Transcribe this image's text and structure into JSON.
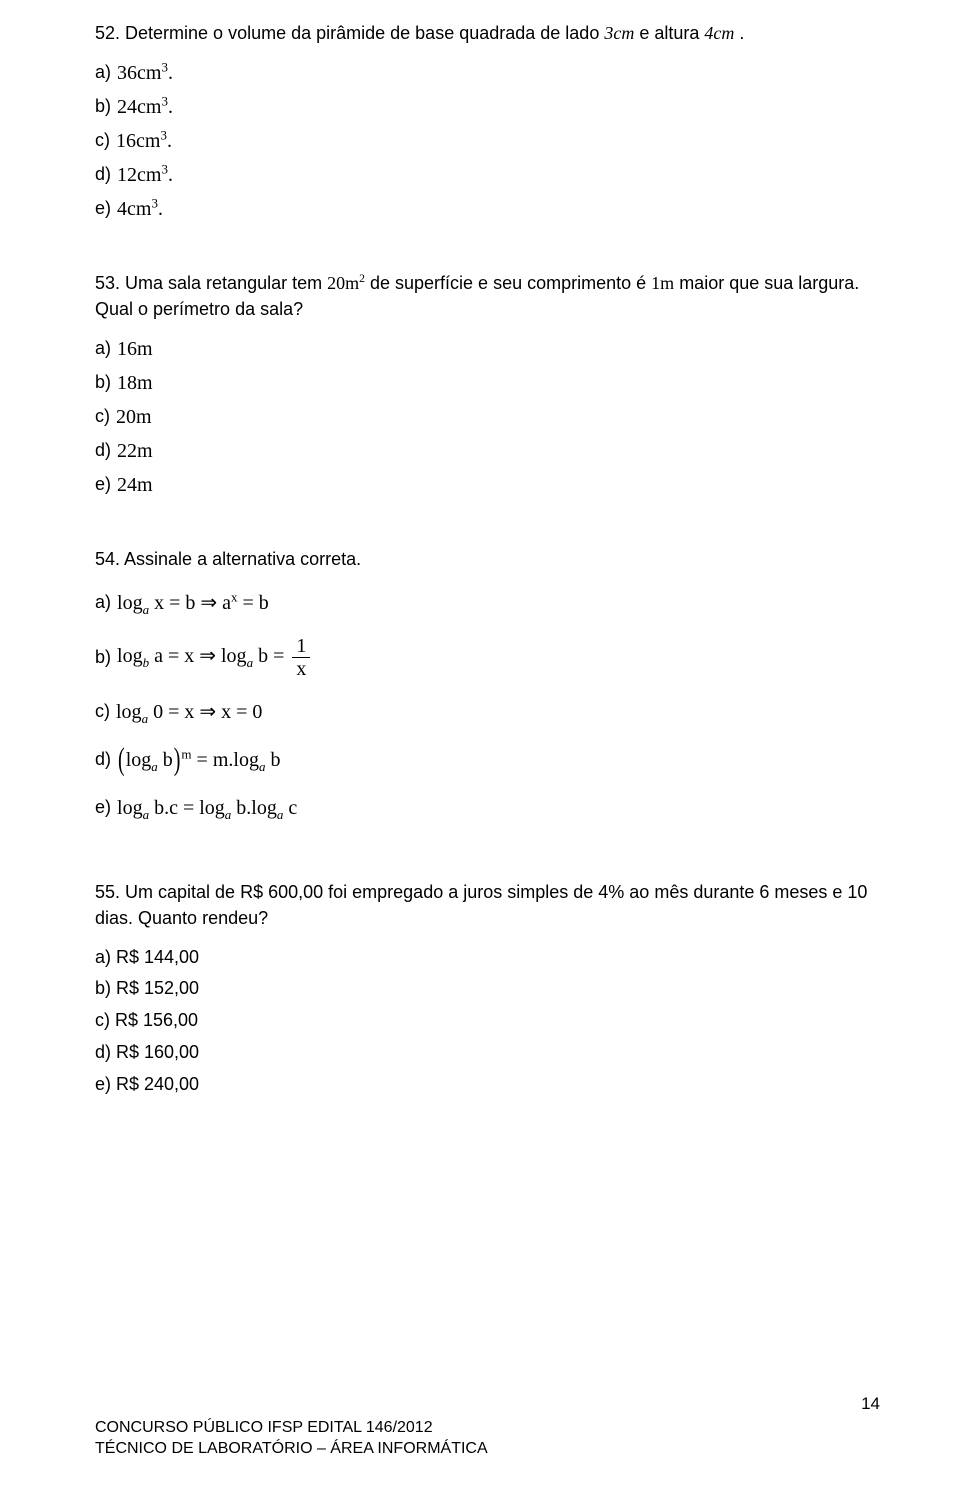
{
  "q52": {
    "stem_prefix": "52. Determine o volume da pirâmide de base quadrada de lado ",
    "side": "3cm",
    "stem_mid": " e altura ",
    "height": "4cm",
    "stem_suffix": ".",
    "options": {
      "a": "36cm",
      "b": "24cm",
      "c": "16cm",
      "d": "12cm",
      "e": "4cm"
    },
    "exp": "3"
  },
  "q53": {
    "stem_a": "53. Uma sala retangular tem ",
    "area": "20m",
    "area_exp": "2",
    "stem_b": " de superfície e seu comprimento é ",
    "diff": "1m",
    "stem_c": " maior que sua largura. Qual o perímetro da sala?",
    "options": {
      "a": "16m",
      "b": "18m",
      "c": "20m",
      "d": "22m",
      "e": "24m"
    }
  },
  "q54": {
    "stem": "54. Assinale a alternativa correta.",
    "a_lhs": "log",
    "a_sub": "a",
    "a_eq1": " x = b ⇒ a",
    "a_exp": "x",
    "a_eq2": " = b",
    "b_p1": "log",
    "b_sub1": "b",
    "b_p2": " a = x ⇒ log",
    "b_sub2": "a",
    "b_p3": " b = ",
    "b_num": "1",
    "b_den": "x",
    "c_p1": "log",
    "c_sub": "a",
    "c_p2": " 0 = x ⇒ x = 0",
    "d_p1": "log",
    "d_sub1": "a",
    "d_p2": " b",
    "d_exp": "m",
    "d_p3": " = m.log",
    "d_sub2": "a",
    "d_p4": " b",
    "e_p1": "log",
    "e_sub1": "a",
    "e_p2": " b.c = log",
    "e_sub2": "a",
    "e_p3": " b.log",
    "e_sub3": "a",
    "e_p4": " c"
  },
  "q55": {
    "stem": "55. Um capital de R$ 600,00 foi empregado a juros simples de 4% ao mês durante 6 meses e 10 dias. Quanto rendeu?",
    "options": {
      "a": "a) R$ 144,00",
      "b": "b) R$ 152,00",
      "c": "c) R$ 156,00",
      "d": "d) R$ 160,00",
      "e": "e) R$ 240,00"
    }
  },
  "footer": {
    "line1": "CONCURSO PÚBLICO IFSP EDITAL 146/2012",
    "line2": "TÉCNICO DE LABORATÓRIO – ÁREA INFORMÁTICA",
    "page": "14"
  }
}
